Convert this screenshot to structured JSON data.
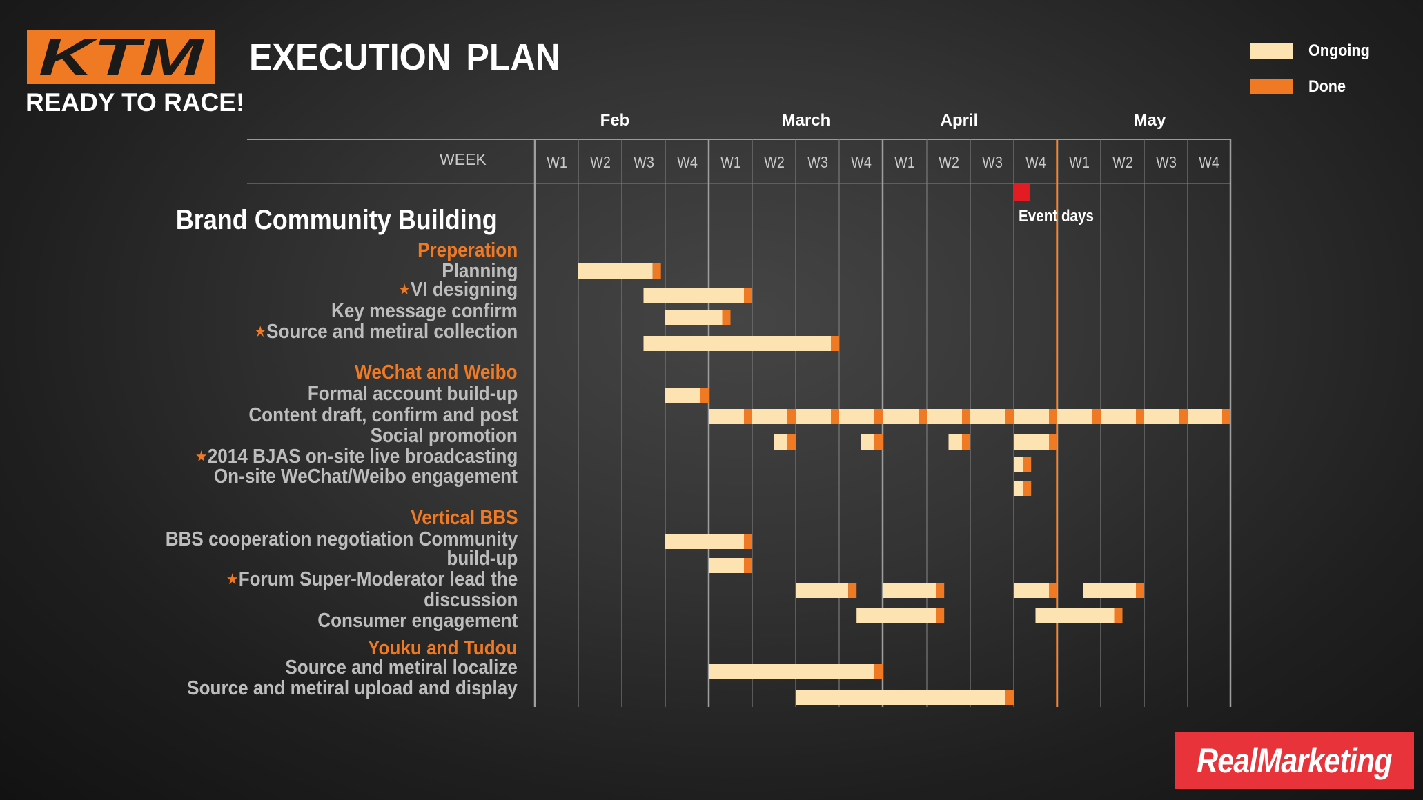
{
  "brand": {
    "logo_text": "KTM",
    "tagline": "READY TO RACE!",
    "badge": "RealMarketing"
  },
  "title": "EXECUTION  PLAN",
  "legend": [
    {
      "label": "Ongoing",
      "color": "#fde3b1"
    },
    {
      "label": "Done",
      "color": "#f07a23"
    }
  ],
  "colors": {
    "accent": "#f07a23",
    "ongoing": "#fde3b1",
    "event": "#e31b23",
    "badge": "#e8333a"
  },
  "timeline": {
    "week_header": "WEEK",
    "months": [
      "Feb",
      "March",
      "April",
      "May"
    ],
    "weeks": [
      "W1",
      "W2",
      "W3",
      "W4",
      "W1",
      "W2",
      "W3",
      "W4",
      "W1",
      "W2",
      "W3",
      "W4",
      "W1",
      "W2",
      "W3",
      "W4"
    ],
    "event_label": "Event days",
    "event_week": 12
  },
  "section_title": "Brand Community Building",
  "tasks": [
    {
      "label": "Preperation",
      "group": true,
      "star": false
    },
    {
      "label": "Planning",
      "group": false,
      "star": false
    },
    {
      "label": "VI designing",
      "group": false,
      "star": true
    },
    {
      "label": "Key message confirm",
      "group": false,
      "star": false
    },
    {
      "label": "Source and metiral collection",
      "group": false,
      "star": true
    },
    {
      "label": "WeChat and Weibo",
      "group": true,
      "star": false
    },
    {
      "label": "Formal account build-up",
      "group": false,
      "star": false
    },
    {
      "label": "Content draft, confirm and post",
      "group": false,
      "star": false
    },
    {
      "label": "Social promotion",
      "group": false,
      "star": false
    },
    {
      "label": "2014 BJAS on-site live broadcasting",
      "group": false,
      "star": true
    },
    {
      "label": "On-site WeChat/Weibo engagement",
      "group": false,
      "star": false
    },
    {
      "label": "Vertical BBS",
      "group": true,
      "star": false
    },
    {
      "label": "BBS cooperation negotiation  Community",
      "group": false,
      "star": false
    },
    {
      "label": "build-up",
      "group": false,
      "star": false
    },
    {
      "label": "Forum Super-Moderator lead the",
      "group": false,
      "star": true
    },
    {
      "label": "discussion",
      "group": false,
      "star": false
    },
    {
      "label": "Consumer engagement",
      "group": false,
      "star": false
    },
    {
      "label": "Youku and Tudou",
      "group": true,
      "star": false
    },
    {
      "label": "Source and metiral localize",
      "group": false,
      "star": false
    },
    {
      "label": "Source and metiral upload and display",
      "group": false,
      "star": false
    }
  ],
  "bars": [
    {
      "task": "Planning",
      "start_week": 1,
      "end_week": 2.9
    },
    {
      "task": "VI designing",
      "start_week": 2.5,
      "end_week": 5.0
    },
    {
      "task": "Key message confirm",
      "start_week": 3.0,
      "end_week": 4.5
    },
    {
      "task": "Source and metiral collection",
      "start_week": 2.5,
      "end_week": 7.0
    },
    {
      "task": "Formal account build-up",
      "start_week": 3.0,
      "end_week": 4.0
    },
    {
      "task": "Content draft, confirm and post",
      "start_week": 4.0,
      "end_week": 5.0
    },
    {
      "task": "Content draft, confirm and post",
      "start_week": 5.0,
      "end_week": 6.0
    },
    {
      "task": "Content draft, confirm and post",
      "start_week": 6.0,
      "end_week": 7.0
    },
    {
      "task": "Content draft, confirm and post",
      "start_week": 7.0,
      "end_week": 8.0
    },
    {
      "task": "Content draft, confirm and post",
      "start_week": 8.0,
      "end_week": 9.0
    },
    {
      "task": "Content draft, confirm and post",
      "start_week": 9.0,
      "end_week": 10.0
    },
    {
      "task": "Content draft, confirm and post",
      "start_week": 10.0,
      "end_week": 11.0
    },
    {
      "task": "Content draft, confirm and post",
      "start_week": 11.0,
      "end_week": 12.0
    },
    {
      "task": "Content draft, confirm and post",
      "start_week": 12.0,
      "end_week": 13.0
    },
    {
      "task": "Content draft, confirm and post",
      "start_week": 13.0,
      "end_week": 14.0
    },
    {
      "task": "Content draft, confirm and post",
      "start_week": 14.0,
      "end_week": 15.0
    },
    {
      "task": "Content draft, confirm and post",
      "start_week": 15.0,
      "end_week": 16.0
    },
    {
      "task": "Social promotion",
      "start_week": 5.5,
      "end_week": 6.0
    },
    {
      "task": "Social promotion",
      "start_week": 7.5,
      "end_week": 8.0
    },
    {
      "task": "Social promotion",
      "start_week": 9.5,
      "end_week": 10.0
    },
    {
      "task": "Social promotion",
      "start_week": 11.0,
      "end_week": 12.0
    },
    {
      "task": "2014 BJAS on-site live broadcasting",
      "start_week": 11.0,
      "end_week": 11.4
    },
    {
      "task": "On-site WeChat/Weibo engagement",
      "start_week": 11.0,
      "end_week": 11.4
    },
    {
      "task": "BBS cooperation negotiation",
      "start_week": 3.0,
      "end_week": 5.0
    },
    {
      "task": "Community build-up",
      "start_week": 4.0,
      "end_week": 5.0
    },
    {
      "task": "Forum Super-Moderator lead the discussion",
      "start_week": 6.0,
      "end_week": 7.4
    },
    {
      "task": "Forum Super-Moderator lead the discussion",
      "start_week": 8.0,
      "end_week": 9.4
    },
    {
      "task": "Forum Super-Moderator lead the discussion",
      "start_week": 11.0,
      "end_week": 12.0
    },
    {
      "task": "Forum Super-Moderator lead the discussion",
      "start_week": 12.6,
      "end_week": 14.0
    },
    {
      "task": "Consumer engagement",
      "start_week": 7.4,
      "end_week": 9.4
    },
    {
      "task": "Consumer engagement",
      "start_week": 11.5,
      "end_week": 13.5
    },
    {
      "task": "Source and metiral localize",
      "start_week": 4.0,
      "end_week": 8.0
    },
    {
      "task": "Source and metiral upload and display",
      "start_week": 6.0,
      "end_week": 11.0
    }
  ]
}
